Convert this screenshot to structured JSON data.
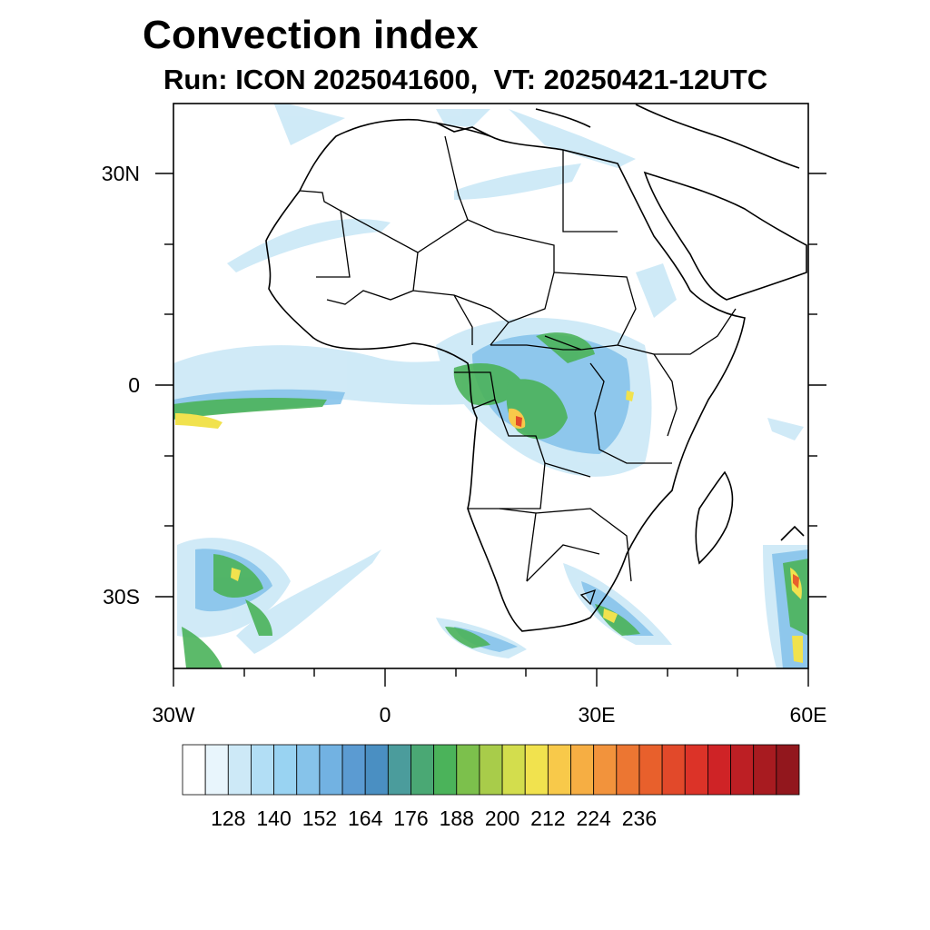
{
  "title": "Convection index",
  "subtitle": "Run: ICON 2025041600,  VT: 20250421-12UTC",
  "axes": {
    "lat_labels": [
      "30N",
      "0",
      "30S"
    ],
    "lon_labels": [
      "30W",
      "0",
      "30E",
      "60E"
    ]
  },
  "colorbar": {
    "labels": [
      "128",
      "140",
      "152",
      "164",
      "176",
      "188",
      "200",
      "212",
      "224",
      "236"
    ],
    "colors": [
      "#ffffff",
      "#e8f5fc",
      "#cde9f7",
      "#b2def5",
      "#99d3f2",
      "#86c3ea",
      "#72b2e2",
      "#5b9bd2",
      "#4a8fc2",
      "#4b9c9c",
      "#4aa874",
      "#4bb35a",
      "#7cc04c",
      "#a8cc4a",
      "#d3dd4d",
      "#f1e24e",
      "#f8c94a",
      "#f6ae43",
      "#f2933c",
      "#ec7632",
      "#e8602c",
      "#e2492a",
      "#dc3328",
      "#cf2326",
      "#bd1f24",
      "#a81b20",
      "#92171d"
    ]
  }
}
